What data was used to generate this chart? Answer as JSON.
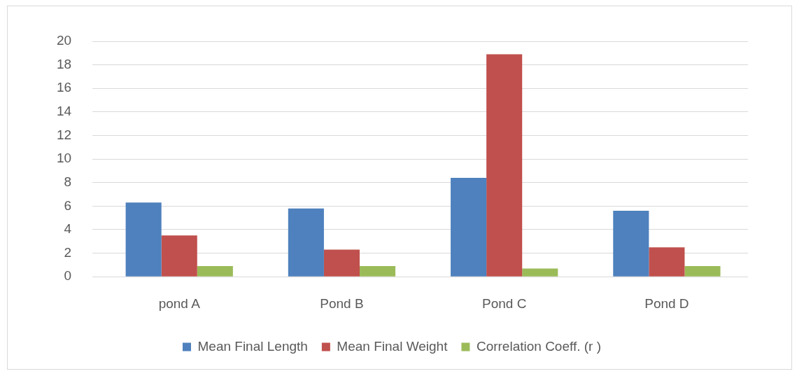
{
  "chart_data": {
    "type": "bar",
    "categories": [
      "pond A",
      "Pond B",
      "Pond C",
      "Pond D"
    ],
    "series": [
      {
        "name": "Mean Final Length",
        "color": "#4e81bd",
        "values": [
          6.3,
          5.8,
          8.4,
          5.6
        ]
      },
      {
        "name": "Mean Final Weight",
        "color": "#c0504d",
        "values": [
          3.5,
          2.3,
          18.9,
          2.5
        ]
      },
      {
        "name": "Correlation Coeff. (r )",
        "color": "#9bbb59",
        "values": [
          0.9,
          0.9,
          0.7,
          0.9
        ]
      }
    ],
    "ylim": [
      0,
      20
    ],
    "yticks": [
      0,
      2,
      4,
      6,
      8,
      10,
      12,
      14,
      16,
      18,
      20
    ],
    "grid": "y",
    "legend": "bottom"
  }
}
